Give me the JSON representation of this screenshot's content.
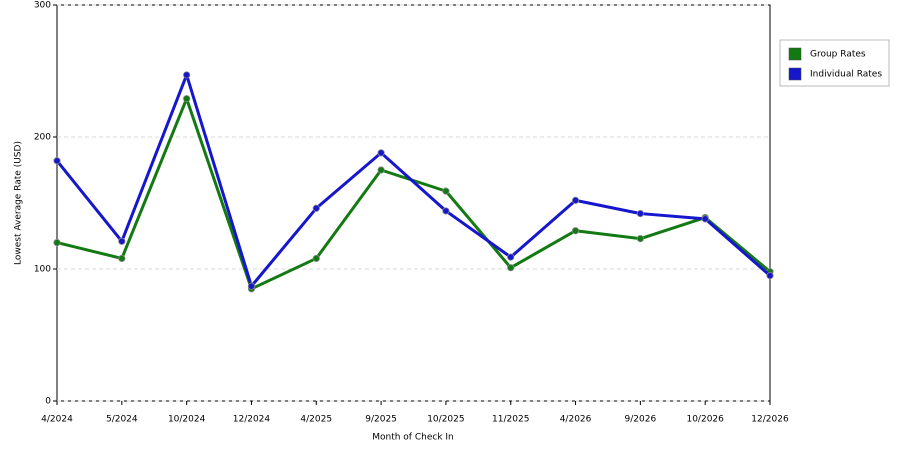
{
  "chart_data": {
    "type": "line",
    "x_label": "Month of Check In",
    "y_label": "Lowest Average Rate (USD)",
    "categories": [
      "4/2024",
      "5/2024",
      "10/2024",
      "12/2024",
      "4/2025",
      "9/2025",
      "10/2025",
      "11/2025",
      "4/2026",
      "9/2026",
      "10/2026",
      "12/2026"
    ],
    "series": [
      {
        "name": "Group Rates",
        "color": "#137a13",
        "values": [
          120,
          108,
          229,
          85,
          108,
          175,
          159,
          101,
          129,
          123,
          139,
          98
        ]
      },
      {
        "name": "Individual Rates",
        "color": "#1616cc",
        "values": [
          182,
          121,
          247,
          87,
          146,
          188,
          144,
          109,
          152,
          142,
          138,
          95
        ]
      }
    ],
    "ylim": [
      0,
      300
    ],
    "yticks": [
      0,
      100,
      200,
      300
    ],
    "grid": true,
    "legend": "right"
  }
}
